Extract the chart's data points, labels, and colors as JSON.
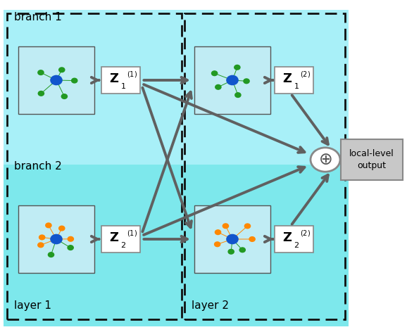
{
  "bg_color": "#7DE8EC",
  "branch1_bg": "#A8F0F8",
  "dashed_color": "#111111",
  "arrow_color": "#606060",
  "box_fill": "#FFFFFF",
  "output_fill": "#C8C8C8",
  "graph_fill": "#C0ECF4",
  "branch1_label": "branch 1",
  "branch2_label": "branch 2",
  "layer1_label": "layer 1",
  "layer2_label": "layer 2",
  "output_label": "local-level\noutput",
  "green_color": "#229922",
  "orange_color": "#FF8800",
  "blue_color": "#1155CC",
  "spoke_color_green": "#229922",
  "spoke_color_orange": "#FF8800",
  "cell_line_color": "#999999",
  "figw": 5.78,
  "figh": 4.72,
  "dpi": 100
}
